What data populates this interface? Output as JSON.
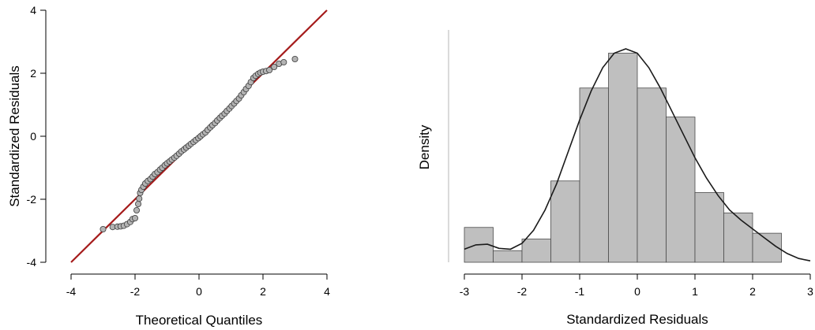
{
  "chart_data": [
    {
      "type": "scatter",
      "subtype": "qq-plot",
      "xlabel": "Theoretical Quantiles",
      "ylabel": "Standardized Residuals",
      "xlim": [
        -4,
        4
      ],
      "ylim": [
        -4,
        4
      ],
      "x_ticks": [
        "-4",
        "-2",
        "0",
        "2",
        "4"
      ],
      "y_ticks": [
        "-4",
        "-2",
        "0",
        "2",
        "4"
      ],
      "reference_line": {
        "from": [
          -4,
          -4
        ],
        "to": [
          4,
          4
        ],
        "color": "#a51b1b"
      },
      "point_color": "#b3b3b3",
      "points": {
        "x": [
          -3.0,
          -2.7,
          -2.55,
          -2.45,
          -2.35,
          -2.25,
          -2.15,
          -2.08,
          -2.0,
          -1.95,
          -1.9,
          -1.87,
          -1.84,
          -1.8,
          -1.74,
          -1.68,
          -1.6,
          -1.52,
          -1.45,
          -1.38,
          -1.3,
          -1.22,
          -1.15,
          -1.07,
          -1.0,
          -0.92,
          -0.85,
          -0.77,
          -0.7,
          -0.62,
          -0.55,
          -0.47,
          -0.4,
          -0.32,
          -0.25,
          -0.17,
          -0.1,
          -0.02,
          0.05,
          0.12,
          0.2,
          0.27,
          0.35,
          0.42,
          0.5,
          0.57,
          0.65,
          0.72,
          0.8,
          0.87,
          0.95,
          1.02,
          1.1,
          1.17,
          1.25,
          1.32,
          1.4,
          1.47,
          1.55,
          1.62,
          1.7,
          1.77,
          1.85,
          1.92,
          2.0,
          2.1,
          2.2,
          2.35,
          2.5,
          2.65,
          3.0
        ],
        "y": [
          -2.95,
          -2.88,
          -2.87,
          -2.86,
          -2.84,
          -2.79,
          -2.72,
          -2.63,
          -2.6,
          -2.35,
          -2.15,
          -1.98,
          -1.8,
          -1.7,
          -1.6,
          -1.5,
          -1.42,
          -1.36,
          -1.28,
          -1.2,
          -1.14,
          -1.06,
          -1.0,
          -0.92,
          -0.86,
          -0.8,
          -0.74,
          -0.68,
          -0.62,
          -0.55,
          -0.48,
          -0.42,
          -0.36,
          -0.3,
          -0.24,
          -0.18,
          -0.12,
          -0.06,
          0.0,
          0.06,
          0.12,
          0.2,
          0.28,
          0.35,
          0.42,
          0.5,
          0.58,
          0.65,
          0.72,
          0.8,
          0.88,
          0.96,
          1.04,
          1.12,
          1.2,
          1.3,
          1.4,
          1.5,
          1.6,
          1.72,
          1.85,
          1.92,
          1.98,
          2.02,
          2.05,
          2.07,
          2.1,
          2.2,
          2.3,
          2.35,
          2.45
        ]
      }
    },
    {
      "type": "bar",
      "subtype": "histogram-with-density",
      "xlabel": "Standardized Residuals",
      "ylabel": "Density",
      "xlim": [
        -3,
        3
      ],
      "x_ticks": [
        "-3",
        "-2",
        "-1",
        "0",
        "1",
        "2",
        "3"
      ],
      "bin_edges": [
        -3.0,
        -2.5,
        -2.0,
        -1.5,
        -1.0,
        -0.5,
        0.0,
        0.5,
        1.0,
        1.5,
        2.0,
        2.5
      ],
      "densities": [
        0.12,
        0.04,
        0.08,
        0.28,
        0.6,
        0.72,
        0.6,
        0.5,
        0.24,
        0.17,
        0.1
      ],
      "ymax": 0.8,
      "bar_color": "#bfbfbf",
      "density_curve": {
        "x": [
          -3.0,
          -2.8,
          -2.6,
          -2.4,
          -2.2,
          -2.0,
          -1.8,
          -1.6,
          -1.4,
          -1.2,
          -1.0,
          -0.8,
          -0.6,
          -0.4,
          -0.2,
          0.0,
          0.2,
          0.4,
          0.6,
          0.8,
          1.0,
          1.2,
          1.4,
          1.6,
          1.8,
          2.0,
          2.2,
          2.4,
          2.6,
          2.8,
          3.0
        ],
        "y": [
          0.045,
          0.06,
          0.062,
          0.048,
          0.045,
          0.065,
          0.11,
          0.18,
          0.27,
          0.38,
          0.49,
          0.59,
          0.67,
          0.72,
          0.735,
          0.72,
          0.67,
          0.6,
          0.52,
          0.44,
          0.36,
          0.29,
          0.23,
          0.18,
          0.145,
          0.115,
          0.085,
          0.055,
          0.03,
          0.013,
          0.005
        ]
      }
    }
  ]
}
